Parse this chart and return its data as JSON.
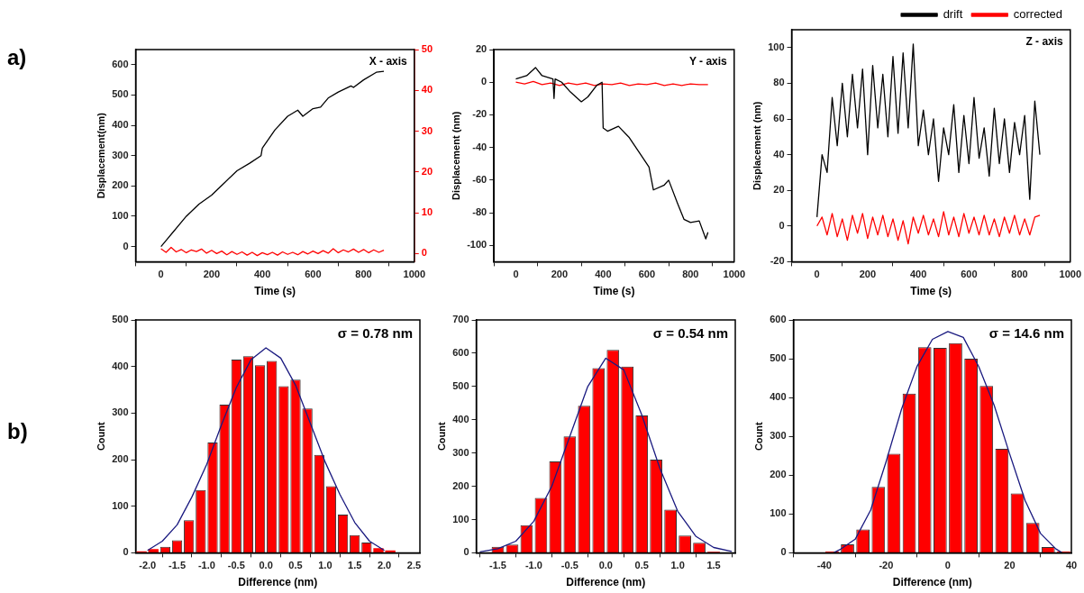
{
  "chart_data": [
    {
      "type": "line",
      "title": "X - axis",
      "xlabel": "Time (s)",
      "ylabel": "Displacement(nm)",
      "annotations": [
        "a)"
      ],
      "xlim": [
        -100,
        1000
      ],
      "xticks": [
        0,
        200,
        400,
        600,
        800,
        1000
      ],
      "ylim": [
        -50,
        650
      ],
      "yticks": [
        0,
        100,
        200,
        300,
        400,
        500,
        600
      ],
      "y2lim": [
        -2,
        50
      ],
      "y2ticks": [
        0,
        10,
        20,
        30,
        40,
        50
      ],
      "series": [
        {
          "color": "#000000",
          "x": [
            0,
            20,
            50,
            100,
            150,
            200,
            250,
            300,
            350,
            395,
            400,
            450,
            500,
            540,
            560,
            600,
            630,
            660,
            700,
            750,
            760,
            800,
            850,
            880
          ],
          "values": [
            0,
            20,
            50,
            100,
            140,
            170,
            210,
            250,
            275,
            300,
            325,
            385,
            430,
            450,
            430,
            455,
            460,
            490,
            510,
            530,
            525,
            550,
            575,
            578
          ]
        },
        {
          "color": "#ff0000",
          "axis": "y2",
          "x": [
            0,
            20,
            40,
            60,
            80,
            100,
            120,
            140,
            160,
            180,
            200,
            220,
            240,
            260,
            280,
            300,
            320,
            340,
            360,
            380,
            400,
            420,
            440,
            460,
            480,
            500,
            520,
            540,
            560,
            580,
            600,
            620,
            640,
            660,
            680,
            700,
            720,
            740,
            760,
            780,
            800,
            820,
            840,
            860,
            880
          ],
          "values": [
            1.2,
            0.3,
            1.5,
            0.4,
            1.0,
            0.2,
            0.9,
            0.5,
            1.1,
            0.1,
            0.8,
            0.0,
            0.6,
            -0.3,
            0.5,
            -0.2,
            0.4,
            -0.4,
            0.3,
            -0.5,
            0.2,
            -0.3,
            0.3,
            -0.4,
            0.4,
            -0.2,
            0.3,
            -0.3,
            0.5,
            -0.1,
            0.6,
            0.0,
            0.7,
            0.1,
            1.2,
            0.2,
            0.9,
            0.4,
            1.1,
            0.3,
            1.0,
            0.2,
            0.9,
            0.3,
            0.8
          ]
        }
      ]
    },
    {
      "type": "line",
      "title": "Y - axis",
      "xlabel": "Time (s)",
      "ylabel": "Displacement (nm)",
      "xlim": [
        -100,
        1000
      ],
      "xticks": [
        0,
        200,
        400,
        600,
        800,
        1000
      ],
      "ylim": [
        -110,
        20
      ],
      "yticks": [
        -100,
        -80,
        -60,
        -40,
        -20,
        0,
        20
      ],
      "series": [
        {
          "color": "#000000",
          "x": [
            0,
            50,
            90,
            120,
            170,
            175,
            180,
            210,
            250,
            300,
            330,
            370,
            395,
            400,
            420,
            470,
            520,
            570,
            610,
            630,
            680,
            700,
            740,
            770,
            800,
            840,
            870,
            880
          ],
          "values": [
            2,
            4,
            9,
            4,
            2,
            -10,
            2,
            0,
            -6,
            -12,
            -9,
            -2,
            0,
            -28,
            -30,
            -27,
            -34,
            -44,
            -52,
            -66,
            -63,
            -60,
            -74,
            -84,
            -86,
            -85,
            -96,
            -92
          ]
        },
        {
          "color": "#ff0000",
          "x": [
            0,
            40,
            80,
            120,
            160,
            200,
            240,
            280,
            320,
            360,
            400,
            440,
            480,
            520,
            560,
            600,
            640,
            680,
            720,
            760,
            800,
            840,
            880
          ],
          "values": [
            0,
            -1,
            0.5,
            -1.5,
            -0.5,
            -2,
            -0.5,
            -1.5,
            -0.5,
            -2,
            -1,
            -1.5,
            -0.5,
            -2,
            -1,
            -1.5,
            -0.5,
            -2,
            -1,
            -2,
            -1,
            -1.5,
            -1.5
          ]
        }
      ]
    },
    {
      "type": "line",
      "title": "Z - axis",
      "xlabel": "Time (s)",
      "ylabel": "Displacement (nm)",
      "legend": "top right",
      "xlim": [
        -100,
        1000
      ],
      "xticks": [
        0,
        200,
        400,
        600,
        800,
        1000
      ],
      "ylim": [
        -20,
        110
      ],
      "yticks": [
        -20,
        0,
        20,
        40,
        60,
        80,
        100
      ],
      "series": [
        {
          "name": "drift",
          "color": "#000000",
          "x": [
            0,
            20,
            40,
            60,
            80,
            100,
            120,
            140,
            160,
            180,
            200,
            220,
            240,
            260,
            280,
            300,
            320,
            340,
            360,
            380,
            400,
            420,
            440,
            460,
            480,
            500,
            520,
            540,
            560,
            580,
            600,
            620,
            640,
            660,
            680,
            700,
            720,
            740,
            760,
            780,
            800,
            820,
            840,
            860,
            880
          ],
          "values": [
            5,
            40,
            30,
            72,
            45,
            80,
            50,
            85,
            55,
            88,
            40,
            90,
            55,
            85,
            50,
            95,
            52,
            97,
            55,
            102,
            45,
            65,
            40,
            60,
            25,
            55,
            40,
            68,
            30,
            62,
            35,
            72,
            38,
            55,
            28,
            66,
            35,
            60,
            30,
            58,
            40,
            62,
            15,
            70,
            40
          ]
        },
        {
          "name": "corrected",
          "color": "#ff0000",
          "x": [
            0,
            20,
            40,
            60,
            80,
            100,
            120,
            140,
            160,
            180,
            200,
            220,
            240,
            260,
            280,
            300,
            320,
            340,
            360,
            380,
            400,
            420,
            440,
            460,
            480,
            500,
            520,
            540,
            560,
            580,
            600,
            620,
            640,
            660,
            680,
            700,
            720,
            740,
            760,
            780,
            800,
            820,
            840,
            860,
            880
          ],
          "values": [
            0,
            5,
            -5,
            7,
            -6,
            4,
            -8,
            6,
            -4,
            7,
            -7,
            5,
            -5,
            6,
            -6,
            4,
            -8,
            3,
            -10,
            5,
            -4,
            6,
            -5,
            4,
            -6,
            8,
            -5,
            5,
            -6,
            7,
            -4,
            5,
            -5,
            6,
            -5,
            4,
            -6,
            5,
            -4,
            6,
            -5,
            4,
            -5,
            5,
            6
          ]
        }
      ]
    },
    {
      "type": "histogram",
      "title": "σ = 0.78 nm",
      "xlabel": "Difference (nm)",
      "ylabel": "Count",
      "annotations": [
        "b)"
      ],
      "xlim": [
        -2.2,
        2.6
      ],
      "xticks": [
        {
          "value": -2,
          "label": "-2.0"
        },
        {
          "value": -1.5,
          "label": "-1.5"
        },
        {
          "value": -1,
          "label": "-1.0"
        },
        {
          "value": -0.5,
          "label": "-0.5"
        },
        {
          "value": 0,
          "label": "0.0"
        },
        {
          "value": 0.5,
          "label": "0.5"
        },
        {
          "value": 1,
          "label": "1.0"
        },
        {
          "value": 1.5,
          "label": "1.5"
        },
        {
          "value": 2,
          "label": "2.0"
        },
        {
          "value": 2.5,
          "label": "2.5"
        }
      ],
      "ylim": [
        0,
        500
      ],
      "yticks": [
        0,
        100,
        200,
        300,
        400,
        500
      ],
      "bins": [
        -2.2,
        -2.0,
        -1.8,
        -1.6,
        -1.4,
        -1.2,
        -1.0,
        -0.8,
        -0.6,
        -0.4,
        -0.2,
        0,
        0.2,
        0.4,
        0.6,
        0.8,
        1.0,
        1.2,
        1.4,
        1.6,
        1.8,
        2.0,
        2.2
      ],
      "series": [
        {
          "type": "histogram",
          "color": "#ff0000",
          "values": [
            3,
            8,
            13,
            27,
            70,
            135,
            237,
            318,
            415,
            422,
            403,
            412,
            358,
            372,
            310,
            210,
            143,
            82,
            38,
            22,
            10,
            5
          ]
        },
        {
          "type": "line",
          "color": "#1a1a80",
          "x": [
            -2,
            -1.75,
            -1.5,
            -1.25,
            -1,
            -0.75,
            -0.5,
            -0.25,
            0,
            0.25,
            0.5,
            0.75,
            1,
            1.25,
            1.5,
            1.75,
            2
          ],
          "values": [
            5,
            25,
            60,
            120,
            190,
            275,
            355,
            415,
            440,
            418,
            360,
            278,
            195,
            125,
            65,
            25,
            5
          ]
        }
      ]
    },
    {
      "type": "histogram",
      "title": "σ = 0.54 nm",
      "xlabel": "Difference (nm)",
      "ylabel": "Count",
      "xlim": [
        -1.8,
        1.8
      ],
      "xticks": [
        {
          "value": -1.5,
          "label": "-1.5"
        },
        {
          "value": -1,
          "label": "-1.0"
        },
        {
          "value": -0.5,
          "label": "-0.5"
        },
        {
          "value": 0,
          "label": "0.0"
        },
        {
          "value": 0.5,
          "label": "0.5"
        },
        {
          "value": 1,
          "label": "1.0"
        },
        {
          "value": 1.5,
          "label": "1.5"
        }
      ],
      "ylim": [
        0,
        700
      ],
      "yticks": [
        0,
        100,
        200,
        300,
        400,
        500,
        600,
        700
      ],
      "bins": [
        -1.6,
        -1.4,
        -1.2,
        -1.0,
        -0.8,
        -0.6,
        -0.4,
        -0.2,
        0,
        0.2,
        0.4,
        0.6,
        0.8,
        1.0,
        1.2,
        1.4,
        1.6
      ],
      "series": [
        {
          "type": "histogram",
          "color": "#ff0000",
          "values": [
            18,
            25,
            83,
            165,
            275,
            350,
            442,
            555,
            610,
            560,
            413,
            280,
            130,
            52,
            30,
            3
          ]
        },
        {
          "type": "line",
          "color": "#1a1a80",
          "x": [
            -1.75,
            -1.5,
            -1.25,
            -1,
            -0.75,
            -0.5,
            -0.25,
            0,
            0.25,
            0.5,
            0.75,
            1,
            1.25,
            1.5,
            1.75
          ],
          "values": [
            3,
            12,
            35,
            95,
            200,
            350,
            500,
            585,
            550,
            415,
            255,
            125,
            50,
            16,
            4
          ]
        }
      ]
    },
    {
      "type": "histogram",
      "title": "σ = 14.6 nm",
      "xlabel": "Difference (nm)",
      "ylabel": "Count",
      "xlim": [
        -50,
        40
      ],
      "xticks": [
        -40,
        -20,
        0,
        20,
        40
      ],
      "ylim": [
        0,
        600
      ],
      "yticks": [
        0,
        100,
        200,
        300,
        400,
        500,
        600
      ],
      "bins": [
        -40,
        -35,
        -30,
        -25,
        -20,
        -15,
        -10,
        -5,
        0,
        5,
        10,
        15,
        20,
        25,
        30,
        35,
        40
      ],
      "series": [
        {
          "type": "histogram",
          "color": "#ff0000",
          "values": [
            3,
            22,
            60,
            170,
            255,
            410,
            530,
            528,
            540,
            500,
            430,
            268,
            153,
            77,
            15,
            3
          ]
        },
        {
          "type": "line",
          "color": "#1a1a80",
          "x": [
            -37,
            -35,
            -30,
            -25,
            -20,
            -15,
            -10,
            -5,
            0,
            5,
            10,
            15,
            20,
            25,
            30,
            35,
            37
          ],
          "values": [
            0,
            8,
            35,
            110,
            235,
            370,
            480,
            550,
            570,
            555,
            480,
            380,
            255,
            135,
            50,
            10,
            0
          ]
        }
      ]
    }
  ]
}
